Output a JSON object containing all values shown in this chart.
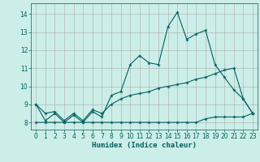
{
  "title": "",
  "xlabel": "Humidex (Indice chaleur)",
  "bg_color": "#cceee8",
  "grid_color": "#aaaaaa",
  "line_color": "#006060",
  "x": [
    0,
    1,
    2,
    3,
    4,
    5,
    6,
    7,
    8,
    9,
    10,
    11,
    12,
    13,
    14,
    15,
    16,
    17,
    18,
    19,
    20,
    21,
    22,
    23
  ],
  "line1": [
    9.0,
    8.1,
    8.5,
    8.0,
    8.4,
    8.0,
    8.6,
    8.3,
    9.5,
    9.7,
    11.2,
    11.7,
    11.3,
    11.2,
    13.3,
    14.1,
    12.6,
    12.9,
    13.1,
    11.2,
    10.5,
    9.8,
    9.3,
    8.5
  ],
  "line2": [
    9.0,
    8.5,
    8.6,
    8.1,
    8.5,
    8.1,
    8.7,
    8.5,
    9.0,
    9.3,
    9.5,
    9.6,
    9.7,
    9.9,
    10.0,
    10.1,
    10.2,
    10.4,
    10.5,
    10.7,
    10.9,
    11.0,
    9.3,
    8.5
  ],
  "line3": [
    8.0,
    8.0,
    8.0,
    8.0,
    8.0,
    8.0,
    8.0,
    8.0,
    8.0,
    8.0,
    8.0,
    8.0,
    8.0,
    8.0,
    8.0,
    8.0,
    8.0,
    8.0,
    8.2,
    8.3,
    8.3,
    8.3,
    8.3,
    8.5
  ],
  "xlim": [
    -0.5,
    23.5
  ],
  "ylim": [
    7.6,
    14.6
  ],
  "yticks": [
    8,
    9,
    10,
    11,
    12,
    13,
    14
  ],
  "xticks": [
    0,
    1,
    2,
    3,
    4,
    5,
    6,
    7,
    8,
    9,
    10,
    11,
    12,
    13,
    14,
    15,
    16,
    17,
    18,
    19,
    20,
    21,
    22,
    23
  ],
  "tick_labelsize": 5.5,
  "xlabel_fontsize": 6.5
}
